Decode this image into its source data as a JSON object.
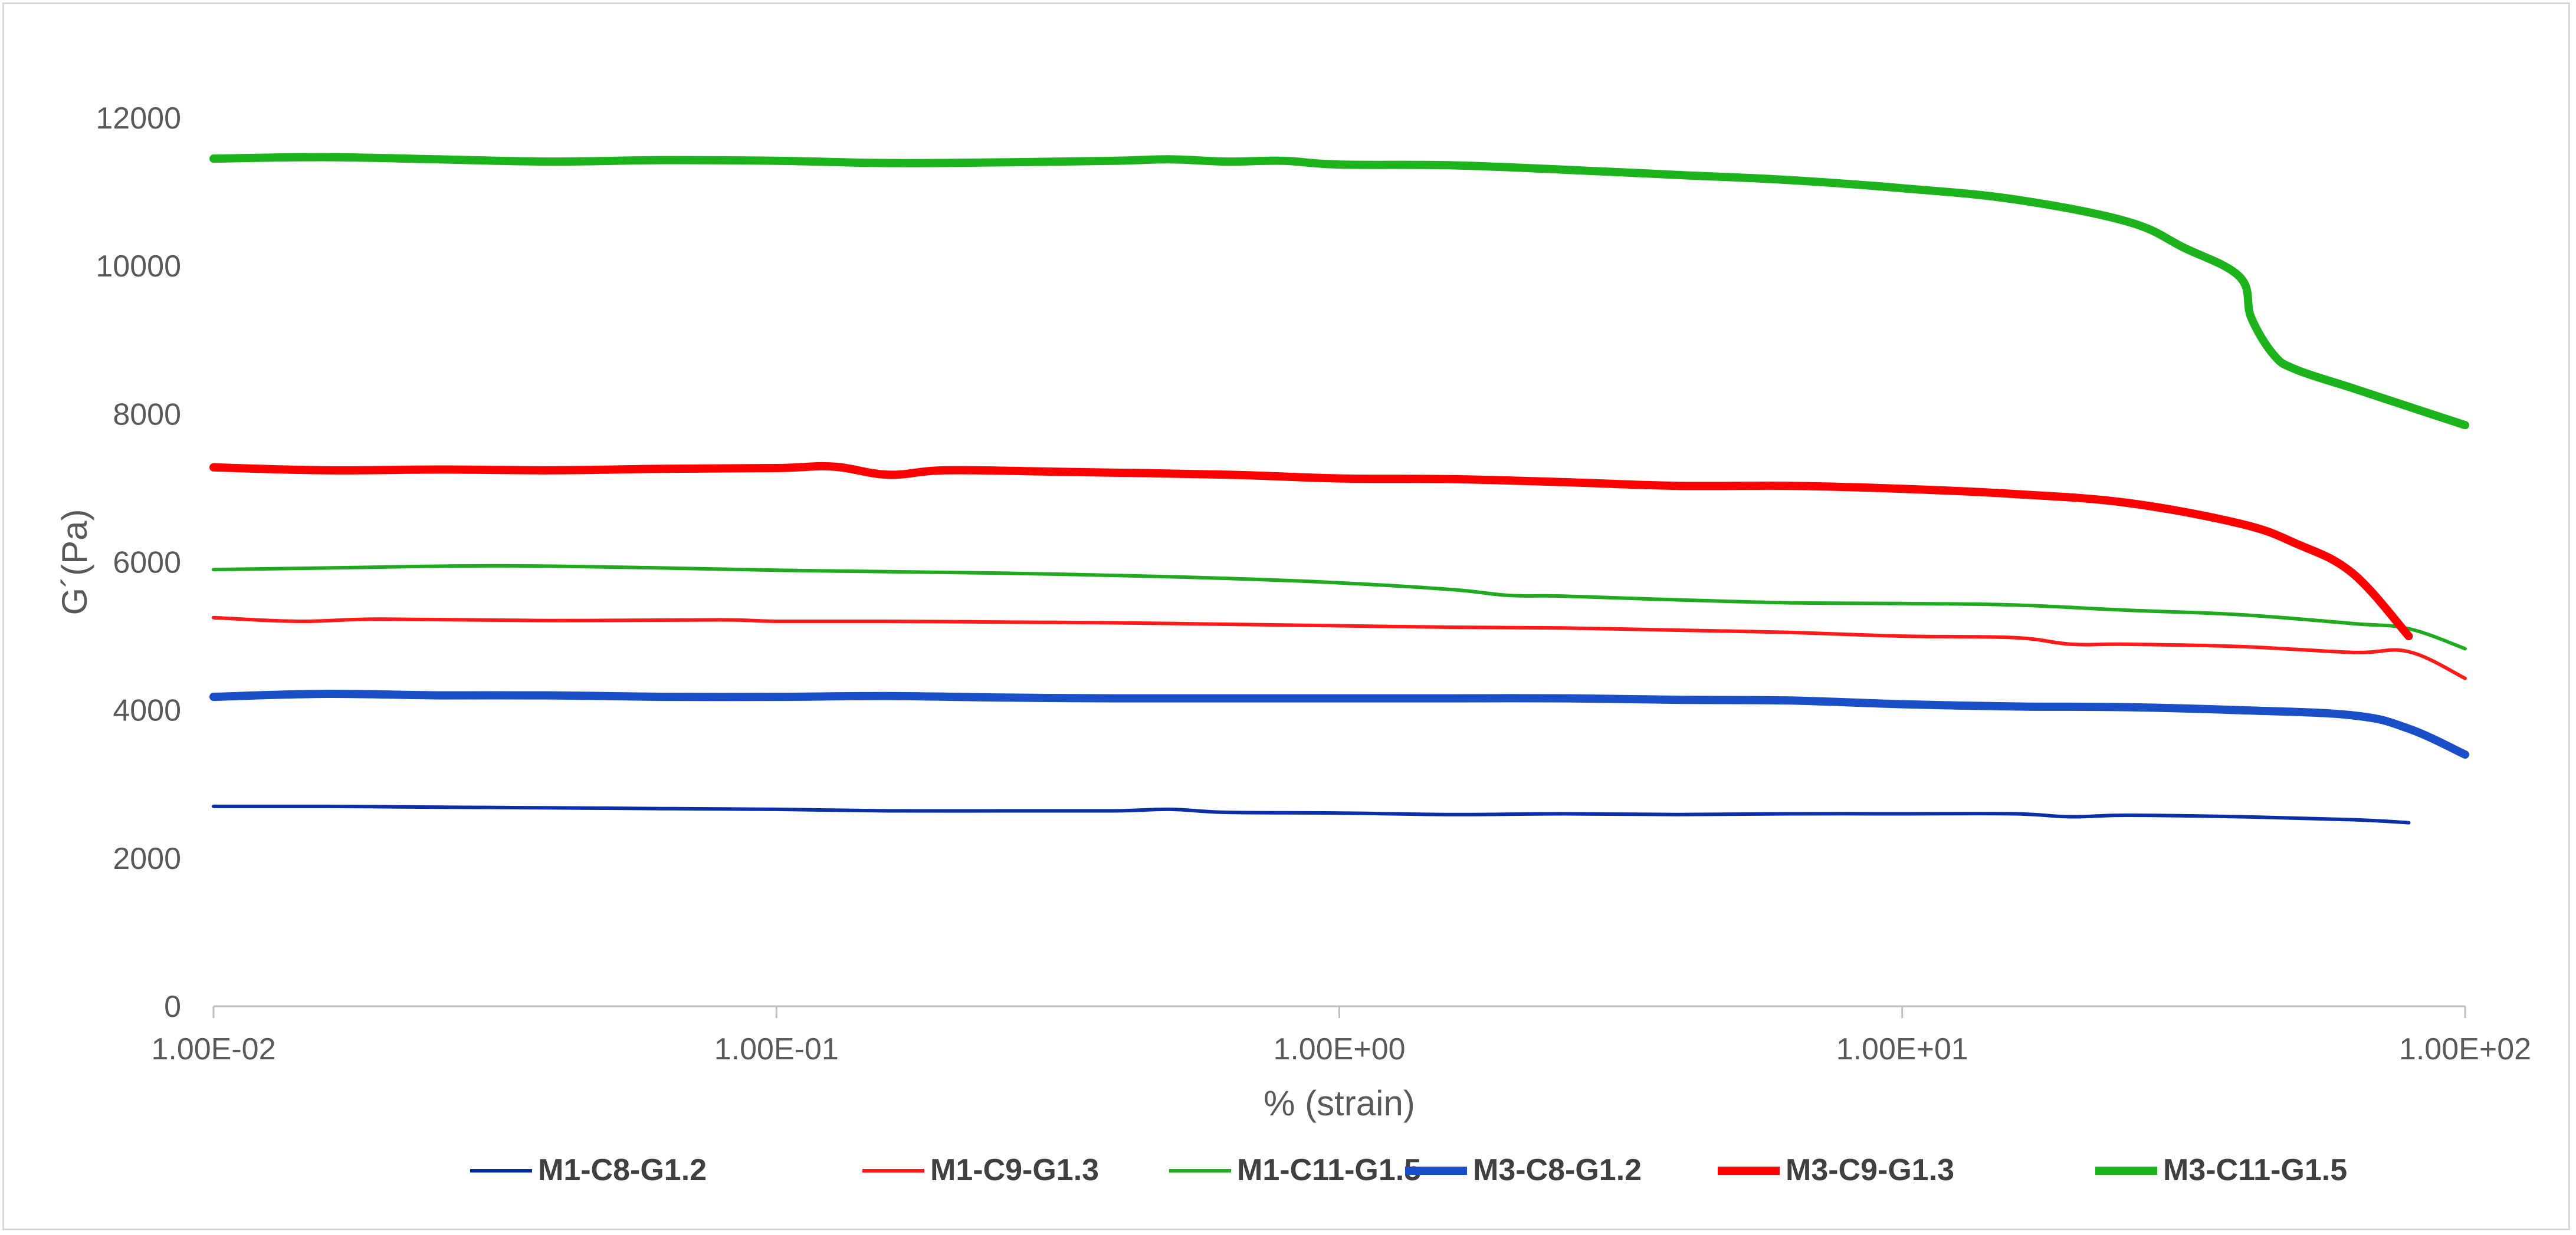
{
  "chart_data": {
    "type": "line",
    "title": "",
    "xlabel": "% (strain)",
    "ylabel": "G´(Pa)",
    "x_scale": "log",
    "xlim": [
      0.01,
      100
    ],
    "ylim": [
      0,
      12000
    ],
    "grid": false,
    "legend_position": "bottom",
    "x_tick_labels": [
      "1.00E-02",
      "1.00E-01",
      "1.00E+00",
      "1.00E+01",
      "1.00E+02"
    ],
    "x_ticks": [
      0.01,
      0.1,
      1,
      10,
      100
    ],
    "y_tick_labels": [
      "0",
      "2000",
      "4000",
      "6000",
      "8000",
      "10000",
      "12000"
    ],
    "y_ticks": [
      0,
      2000,
      4000,
      6000,
      8000,
      10000,
      12000
    ],
    "series": [
      {
        "name": "M1-C8-G1.2",
        "color": "#0a2fa8",
        "line_style": "thin",
        "x": [
          0.01,
          0.0158,
          0.0251,
          0.0398,
          0.0631,
          0.1,
          0.158,
          0.251,
          0.398,
          0.5,
          0.631,
          1,
          1.58,
          2.51,
          3.98,
          6.31,
          10,
          15.8,
          19.9,
          25.1,
          39.8,
          63.1,
          79.4
        ],
        "y": [
          2700,
          2700,
          2690,
          2680,
          2670,
          2660,
          2640,
          2640,
          2640,
          2660,
          2620,
          2610,
          2590,
          2600,
          2590,
          2600,
          2600,
          2600,
          2560,
          2580,
          2560,
          2520,
          2480
        ]
      },
      {
        "name": "M1-C9-G1.3",
        "color": "#ff1a1a",
        "line_style": "thin",
        "x": [
          0.01,
          0.0141,
          0.02,
          0.0398,
          0.0794,
          0.1,
          0.158,
          0.251,
          0.398,
          0.631,
          1,
          1.58,
          2.51,
          3.98,
          6.31,
          10,
          15.8,
          20,
          25.1,
          39.8,
          63.1,
          79.4,
          100
        ],
        "y": [
          5250,
          5200,
          5230,
          5210,
          5220,
          5200,
          5200,
          5190,
          5180,
          5160,
          5140,
          5120,
          5110,
          5080,
          5050,
          5000,
          4980,
          4890,
          4890,
          4860,
          4780,
          4790,
          4430
        ]
      },
      {
        "name": "M1-C11-G1.5",
        "color": "#1faa1f",
        "line_style": "thin",
        "x": [
          0.01,
          0.0158,
          0.0316,
          0.0631,
          0.1,
          0.158,
          0.251,
          0.398,
          0.631,
          1,
          1.58,
          2.0,
          2.51,
          3.98,
          6.31,
          10,
          15.8,
          25.1,
          39.8,
          63.1,
          79.4,
          100
        ],
        "y": [
          5900,
          5920,
          5950,
          5920,
          5890,
          5870,
          5850,
          5820,
          5780,
          5720,
          5630,
          5550,
          5540,
          5490,
          5450,
          5440,
          5420,
          5350,
          5290,
          5170,
          5100,
          4830
        ]
      },
      {
        "name": "M3-C8-G1.2",
        "color": "#1a4fc8",
        "line_style": "thick",
        "x": [
          0.01,
          0.0158,
          0.0251,
          0.0398,
          0.0631,
          0.1,
          0.158,
          0.251,
          0.398,
          0.631,
          1,
          1.58,
          2.51,
          3.98,
          6.31,
          10,
          15.8,
          25.1,
          39.8,
          63.1,
          79.4,
          100
        ],
        "y": [
          4180,
          4220,
          4200,
          4200,
          4180,
          4180,
          4190,
          4170,
          4160,
          4160,
          4160,
          4160,
          4160,
          4140,
          4130,
          4080,
          4050,
          4040,
          4000,
          3930,
          3750,
          3400
        ]
      },
      {
        "name": "M3-C9-G1.3",
        "color": "#ff0000",
        "line_style": "thick",
        "x": [
          0.01,
          0.0158,
          0.0251,
          0.0398,
          0.0631,
          0.1,
          0.126,
          0.158,
          0.2,
          0.316,
          0.631,
          1,
          1.58,
          2.51,
          3.98,
          6.31,
          10,
          15.8,
          25.1,
          39.8,
          50.1,
          63.1,
          79.4
        ],
        "y": [
          7280,
          7240,
          7250,
          7240,
          7260,
          7270,
          7290,
          7180,
          7240,
          7220,
          7180,
          7130,
          7120,
          7080,
          7030,
          7030,
          6990,
          6920,
          6800,
          6520,
          6250,
          5850,
          5000
        ]
      },
      {
        "name": "M3-C11-G1.5",
        "color": "#1db31d",
        "line_style": "thick",
        "x": [
          0.01,
          0.0158,
          0.0251,
          0.0398,
          0.0631,
          0.1,
          0.158,
          0.251,
          0.398,
          0.5,
          0.631,
          0.794,
          1,
          1.58,
          2.51,
          3.98,
          6.31,
          10,
          15.8,
          25.1,
          31.6,
          39.8,
          41.7,
          45.7,
          50.1,
          63.1,
          79.4,
          100
        ],
        "y": [
          11450,
          11470,
          11440,
          11410,
          11430,
          11420,
          11390,
          11400,
          11420,
          11440,
          11410,
          11420,
          11370,
          11360,
          11300,
          11230,
          11160,
          11050,
          10900,
          10600,
          10250,
          9850,
          9300,
          8800,
          8600,
          8350,
          8100,
          7850
        ]
      }
    ]
  }
}
